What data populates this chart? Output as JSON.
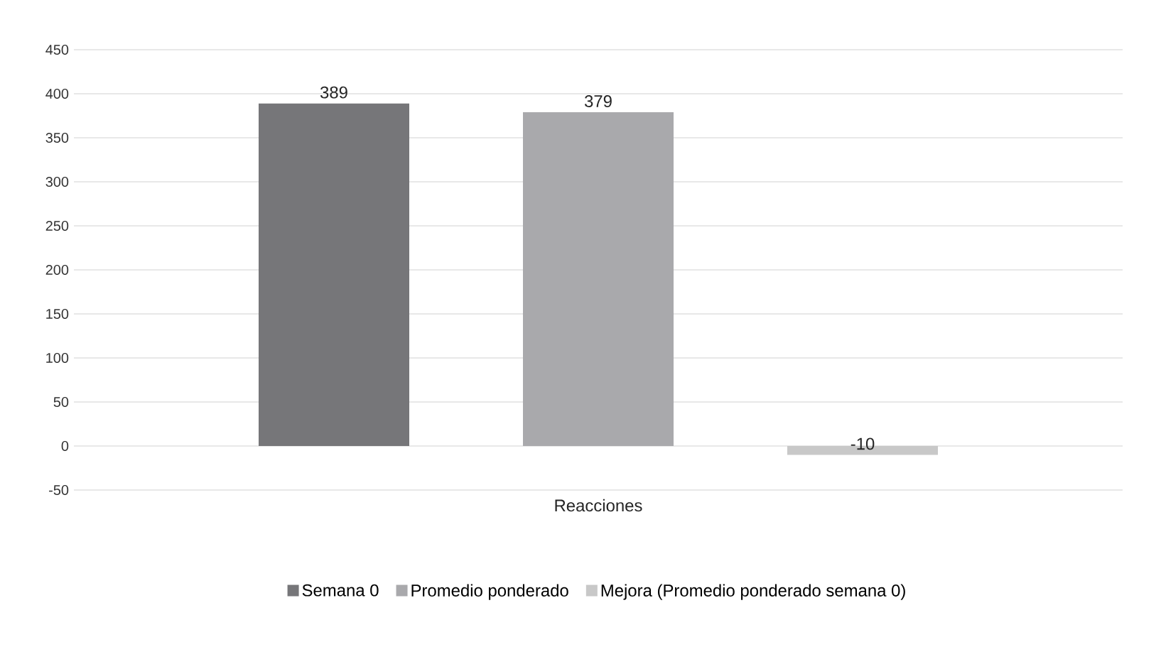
{
  "chart_data": {
    "type": "bar",
    "xlabel": "Reacciones",
    "categories": [
      null
    ],
    "series": [
      {
        "name": "Semana 0",
        "color": "#767679",
        "values": [
          389
        ]
      },
      {
        "name": "Promedio ponderado",
        "color": "#a9a9ac",
        "values": [
          379
        ]
      },
      {
        "name": "Mejora (Promedio ponderado semana 0)",
        "color": "#c8c8c8",
        "values": [
          -10
        ]
      }
    ],
    "ylim": [
      -50,
      450
    ],
    "yticks": [
      -50,
      0,
      50,
      100,
      150,
      200,
      250,
      300,
      350,
      400,
      450
    ],
    "grid": "y",
    "legend": "bottom",
    "data_labels": true
  }
}
